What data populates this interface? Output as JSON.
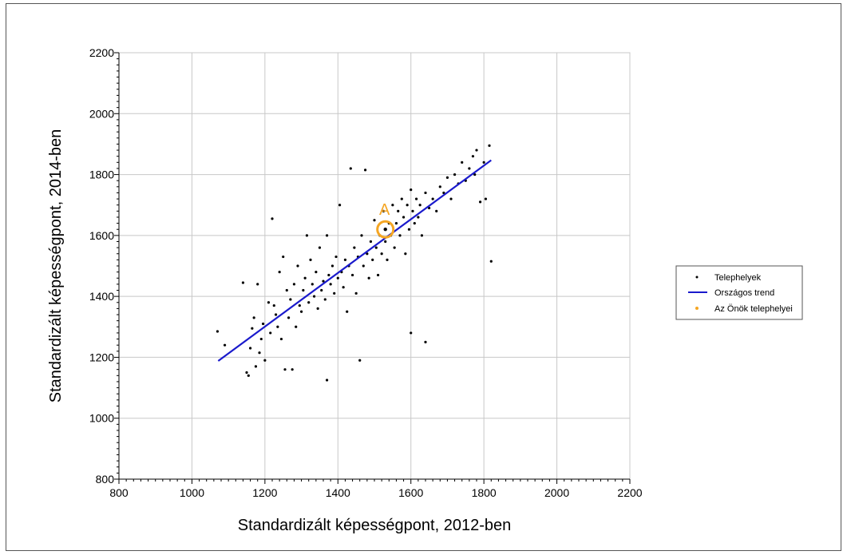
{
  "chart_data": {
    "type": "scatter",
    "xlabel": "Standardizált képességpont, 2012-ben",
    "ylabel": "Standardizált képességpont, 2014-ben",
    "xlim": [
      800,
      2200
    ],
    "ylim": [
      800,
      2200
    ],
    "xticks": [
      "800",
      "1000",
      "1200",
      "1400",
      "1600",
      "1800",
      "2000",
      "2200"
    ],
    "yticks": [
      "800",
      "1000",
      "1200",
      "1400",
      "1600",
      "1800",
      "2000",
      "2200"
    ],
    "grid": true,
    "legend_position": "right",
    "series": [
      {
        "name": "Telephelyek",
        "color": "#000000",
        "points": [
          [
            1070,
            1285
          ],
          [
            1090,
            1240
          ],
          [
            1140,
            1445
          ],
          [
            1150,
            1150
          ],
          [
            1155,
            1140
          ],
          [
            1160,
            1230
          ],
          [
            1165,
            1295
          ],
          [
            1170,
            1330
          ],
          [
            1175,
            1170
          ],
          [
            1180,
            1440
          ],
          [
            1185,
            1215
          ],
          [
            1190,
            1260
          ],
          [
            1195,
            1310
          ],
          [
            1200,
            1190
          ],
          [
            1210,
            1380
          ],
          [
            1215,
            1280
          ],
          [
            1220,
            1655
          ],
          [
            1225,
            1370
          ],
          [
            1230,
            1340
          ],
          [
            1235,
            1300
          ],
          [
            1240,
            1480
          ],
          [
            1245,
            1260
          ],
          [
            1250,
            1530
          ],
          [
            1255,
            1160
          ],
          [
            1260,
            1420
          ],
          [
            1265,
            1330
          ],
          [
            1270,
            1390
          ],
          [
            1275,
            1160
          ],
          [
            1280,
            1440
          ],
          [
            1285,
            1300
          ],
          [
            1290,
            1500
          ],
          [
            1295,
            1370
          ],
          [
            1300,
            1350
          ],
          [
            1305,
            1420
          ],
          [
            1310,
            1460
          ],
          [
            1315,
            1600
          ],
          [
            1320,
            1380
          ],
          [
            1325,
            1520
          ],
          [
            1330,
            1440
          ],
          [
            1335,
            1400
          ],
          [
            1340,
            1480
          ],
          [
            1345,
            1360
          ],
          [
            1350,
            1560
          ],
          [
            1355,
            1420
          ],
          [
            1360,
            1450
          ],
          [
            1365,
            1390
          ],
          [
            1370,
            1125
          ],
          [
            1370,
            1600
          ],
          [
            1375,
            1470
          ],
          [
            1380,
            1440
          ],
          [
            1385,
            1500
          ],
          [
            1390,
            1410
          ],
          [
            1395,
            1530
          ],
          [
            1400,
            1460
          ],
          [
            1405,
            1700
          ],
          [
            1410,
            1480
          ],
          [
            1415,
            1430
          ],
          [
            1420,
            1520
          ],
          [
            1425,
            1350
          ],
          [
            1430,
            1500
          ],
          [
            1435,
            1820
          ],
          [
            1440,
            1470
          ],
          [
            1445,
            1560
          ],
          [
            1450,
            1410
          ],
          [
            1455,
            1530
          ],
          [
            1460,
            1190
          ],
          [
            1465,
            1600
          ],
          [
            1470,
            1500
          ],
          [
            1475,
            1815
          ],
          [
            1480,
            1540
          ],
          [
            1485,
            1460
          ],
          [
            1490,
            1580
          ],
          [
            1495,
            1520
          ],
          [
            1500,
            1650
          ],
          [
            1505,
            1560
          ],
          [
            1510,
            1470
          ],
          [
            1515,
            1600
          ],
          [
            1520,
            1540
          ],
          [
            1525,
            1680
          ],
          [
            1530,
            1580
          ],
          [
            1535,
            1520
          ],
          [
            1540,
            1640
          ],
          [
            1545,
            1600
          ],
          [
            1550,
            1700
          ],
          [
            1555,
            1560
          ],
          [
            1560,
            1640
          ],
          [
            1565,
            1680
          ],
          [
            1570,
            1600
          ],
          [
            1575,
            1720
          ],
          [
            1580,
            1660
          ],
          [
            1585,
            1540
          ],
          [
            1590,
            1700
          ],
          [
            1595,
            1620
          ],
          [
            1600,
            1280
          ],
          [
            1600,
            1750
          ],
          [
            1605,
            1680
          ],
          [
            1610,
            1640
          ],
          [
            1615,
            1720
          ],
          [
            1620,
            1660
          ],
          [
            1625,
            1700
          ],
          [
            1630,
            1600
          ],
          [
            1640,
            1250
          ],
          [
            1640,
            1740
          ],
          [
            1650,
            1690
          ],
          [
            1660,
            1720
          ],
          [
            1670,
            1680
          ],
          [
            1680,
            1760
          ],
          [
            1690,
            1740
          ],
          [
            1700,
            1790
          ],
          [
            1710,
            1720
          ],
          [
            1720,
            1800
          ],
          [
            1730,
            1770
          ],
          [
            1740,
            1840
          ],
          [
            1750,
            1780
          ],
          [
            1760,
            1820
          ],
          [
            1770,
            1860
          ],
          [
            1775,
            1800
          ],
          [
            1780,
            1880
          ],
          [
            1790,
            1710
          ],
          [
            1800,
            1840
          ],
          [
            1805,
            1720
          ],
          [
            1815,
            1895
          ],
          [
            1820,
            1515
          ]
        ]
      },
      {
        "name": "Országos trend",
        "color": "#1a1acc",
        "line": [
          [
            1072,
            1188
          ],
          [
            1820,
            1847
          ]
        ]
      },
      {
        "name": "Az Önök telephelyei",
        "color": "#f5a623",
        "points": [
          [
            1530,
            1620
          ]
        ]
      }
    ],
    "annotations": [
      {
        "text": "A",
        "x": 1530,
        "y": 1620,
        "color": "#f5a623"
      }
    ]
  }
}
